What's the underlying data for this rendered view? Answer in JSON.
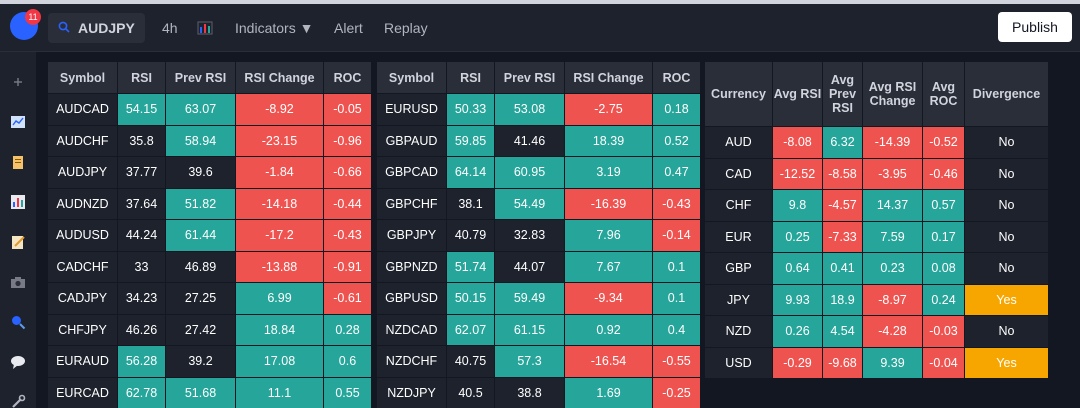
{
  "header": {
    "notifications": "11",
    "symbol": "AUDJPY",
    "interval": "4h",
    "indicators": "Indicators",
    "alert": "Alert",
    "replay": "Replay",
    "publish": "Publish"
  },
  "colors": {
    "green": "#26a69a",
    "red": "#ef5350",
    "yellow": "#f7a600",
    "dark": "#1e222d",
    "header": "#2a2e39",
    "bg": "#131722"
  },
  "tables": {
    "headers": [
      "Symbol",
      "RSI",
      "Prev RSI",
      "RSI Change",
      "ROC"
    ],
    "left": [
      {
        "symbol": "AUDCAD",
        "rsi": "54.15",
        "prev": "63.07",
        "change": "-8.92",
        "roc": "-0.05"
      },
      {
        "symbol": "AUDCHF",
        "rsi": "35.8",
        "prev": "58.94",
        "change": "-23.15",
        "roc": "-0.96"
      },
      {
        "symbol": "AUDJPY",
        "rsi": "37.77",
        "prev": "39.6",
        "change": "-1.84",
        "roc": "-0.66"
      },
      {
        "symbol": "AUDNZD",
        "rsi": "37.64",
        "prev": "51.82",
        "change": "-14.18",
        "roc": "-0.44"
      },
      {
        "symbol": "AUDUSD",
        "rsi": "44.24",
        "prev": "61.44",
        "change": "-17.2",
        "roc": "-0.43"
      },
      {
        "symbol": "CADCHF",
        "rsi": "33",
        "prev": "46.89",
        "change": "-13.88",
        "roc": "-0.91"
      },
      {
        "symbol": "CADJPY",
        "rsi": "34.23",
        "prev": "27.25",
        "change": "6.99",
        "roc": "-0.61"
      },
      {
        "symbol": "CHFJPY",
        "rsi": "46.26",
        "prev": "27.42",
        "change": "18.84",
        "roc": "0.28"
      },
      {
        "symbol": "EURAUD",
        "rsi": "56.28",
        "prev": "39.2",
        "change": "17.08",
        "roc": "0.6"
      },
      {
        "symbol": "EURCAD",
        "rsi": "62.78",
        "prev": "51.68",
        "change": "11.1",
        "roc": "0.55"
      }
    ],
    "middle": [
      {
        "symbol": "EURUSD",
        "rsi": "50.33",
        "prev": "53.08",
        "change": "-2.75",
        "roc": "0.18"
      },
      {
        "symbol": "GBPAUD",
        "rsi": "59.85",
        "prev": "41.46",
        "change": "18.39",
        "roc": "0.52"
      },
      {
        "symbol": "GBPCAD",
        "rsi": "64.14",
        "prev": "60.95",
        "change": "3.19",
        "roc": "0.47"
      },
      {
        "symbol": "GBPCHF",
        "rsi": "38.1",
        "prev": "54.49",
        "change": "-16.39",
        "roc": "-0.43"
      },
      {
        "symbol": "GBPJPY",
        "rsi": "40.79",
        "prev": "32.83",
        "change": "7.96",
        "roc": "-0.14"
      },
      {
        "symbol": "GBPNZD",
        "rsi": "51.74",
        "prev": "44.07",
        "change": "7.67",
        "roc": "0.1"
      },
      {
        "symbol": "GBPUSD",
        "rsi": "50.15",
        "prev": "59.49",
        "change": "-9.34",
        "roc": "0.1"
      },
      {
        "symbol": "NZDCAD",
        "rsi": "62.07",
        "prev": "61.15",
        "change": "0.92",
        "roc": "0.4"
      },
      {
        "symbol": "NZDCHF",
        "rsi": "40.75",
        "prev": "57.3",
        "change": "-16.54",
        "roc": "-0.55"
      },
      {
        "symbol": "NZDJPY",
        "rsi": "40.5",
        "prev": "38.8",
        "change": "1.69",
        "roc": "-0.25"
      }
    ],
    "currency_headers": [
      "Currency",
      "Avg RSI",
      "Avg Prev RSI",
      "Avg RSI Change",
      "Avg ROC",
      "Divergence"
    ],
    "currency": [
      {
        "cur": "AUD",
        "avg_rsi": "-8.08",
        "avg_prev": "6.32",
        "avg_change": "-14.39",
        "avg_roc": "-0.52",
        "div": "No"
      },
      {
        "cur": "CAD",
        "avg_rsi": "-12.52",
        "avg_prev": "-8.58",
        "avg_change": "-3.95",
        "avg_roc": "-0.46",
        "div": "No"
      },
      {
        "cur": "CHF",
        "avg_rsi": "9.8",
        "avg_prev": "-4.57",
        "avg_change": "14.37",
        "avg_roc": "0.57",
        "div": "No"
      },
      {
        "cur": "EUR",
        "avg_rsi": "0.25",
        "avg_prev": "-7.33",
        "avg_change": "7.59",
        "avg_roc": "0.17",
        "div": "No"
      },
      {
        "cur": "GBP",
        "avg_rsi": "0.64",
        "avg_prev": "0.41",
        "avg_change": "0.23",
        "avg_roc": "0.08",
        "div": "No"
      },
      {
        "cur": "JPY",
        "avg_rsi": "9.93",
        "avg_prev": "18.9",
        "avg_change": "-8.97",
        "avg_roc": "0.24",
        "div": "Yes"
      },
      {
        "cur": "NZD",
        "avg_rsi": "0.26",
        "avg_prev": "4.54",
        "avg_change": "-4.28",
        "avg_roc": "-0.03",
        "div": "No"
      },
      {
        "cur": "USD",
        "avg_rsi": "-0.29",
        "avg_prev": "-9.68",
        "avg_change": "9.39",
        "avg_roc": "-0.04",
        "div": "Yes"
      }
    ]
  },
  "cell_colors": {
    "left": [
      [
        "cg",
        "cg",
        "cr",
        "cr"
      ],
      [
        "cd",
        "cg",
        "cr",
        "cr"
      ],
      [
        "cd",
        "cd",
        "cr",
        "cr"
      ],
      [
        "cd",
        "cg",
        "cr",
        "cr"
      ],
      [
        "cd",
        "cg",
        "cr",
        "cr"
      ],
      [
        "cd",
        "cd",
        "cr",
        "cr"
      ],
      [
        "cd",
        "cd",
        "cg",
        "cr"
      ],
      [
        "cd",
        "cd",
        "cg",
        "cg"
      ],
      [
        "cg",
        "cd",
        "cg",
        "cg"
      ],
      [
        "cg",
        "cg",
        "cg",
        "cg"
      ]
    ],
    "middle": [
      [
        "cg",
        "cg",
        "cr",
        "cg"
      ],
      [
        "cg",
        "cd",
        "cg",
        "cg"
      ],
      [
        "cg",
        "cg",
        "cg",
        "cg"
      ],
      [
        "cd",
        "cg",
        "cr",
        "cr"
      ],
      [
        "cd",
        "cd",
        "cg",
        "cr"
      ],
      [
        "cg",
        "cd",
        "cg",
        "cg"
      ],
      [
        "cg",
        "cg",
        "cr",
        "cg"
      ],
      [
        "cg",
        "cg",
        "cg",
        "cg"
      ],
      [
        "cd",
        "cg",
        "cr",
        "cr"
      ],
      [
        "cd",
        "cd",
        "cg",
        "cr"
      ]
    ],
    "currency": [
      [
        "cr",
        "cg",
        "cr",
        "cr",
        "cd"
      ],
      [
        "cr",
        "cr",
        "cr",
        "cr",
        "cd"
      ],
      [
        "cg",
        "cr",
        "cg",
        "cg",
        "cd"
      ],
      [
        "cg",
        "cr",
        "cg",
        "cg",
        "cd"
      ],
      [
        "cg",
        "cg",
        "cg",
        "cg",
        "cd"
      ],
      [
        "cg",
        "cg",
        "cr",
        "cg",
        "cy"
      ],
      [
        "cg",
        "cg",
        "cr",
        "cr",
        "cd"
      ],
      [
        "cr",
        "cr",
        "cg",
        "cr",
        "cy"
      ]
    ]
  }
}
